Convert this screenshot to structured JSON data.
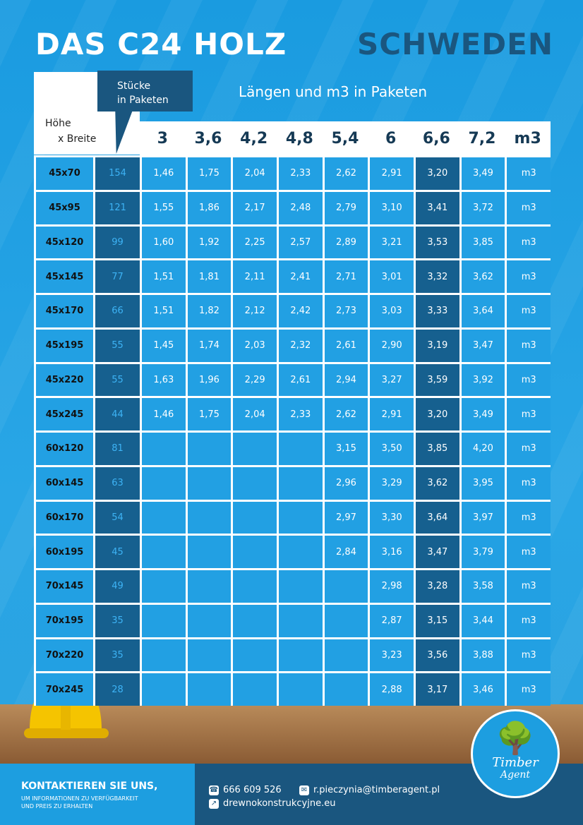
{
  "title_left": "DAS C24 HOLZ",
  "title_right": "SCHWEDEN",
  "header": {
    "hb_line1": "Höhe",
    "hb_line2": "x Breite",
    "pieces_line1": "Stücke",
    "pieces_line2": "in Paketen",
    "lengths_title": "Längen und m3 in Paketen"
  },
  "lengths": [
    "3",
    "3,6",
    "4,2",
    "4,8",
    "5,4",
    "6",
    "6,6",
    "7,2",
    "m3"
  ],
  "rows": [
    {
      "dim": "45x70",
      "pcs": "154",
      "v": [
        "1,46",
        "1,75",
        "2,04",
        "2,33",
        "2,62",
        "2,91",
        "3,20",
        "3,49"
      ],
      "unit": "m3"
    },
    {
      "dim": "45x95",
      "pcs": "121",
      "v": [
        "1,55",
        "1,86",
        "2,17",
        "2,48",
        "2,79",
        "3,10",
        "3,41",
        "3,72"
      ],
      "unit": "m3"
    },
    {
      "dim": "45x120",
      "pcs": "99",
      "v": [
        "1,60",
        "1,92",
        "2,25",
        "2,57",
        "2,89",
        "3,21",
        "3,53",
        "3,85"
      ],
      "unit": "m3"
    },
    {
      "dim": "45x145",
      "pcs": "77",
      "v": [
        "1,51",
        "1,81",
        "2,11",
        "2,41",
        "2,71",
        "3,01",
        "3,32",
        "3,62"
      ],
      "unit": "m3"
    },
    {
      "dim": "45x170",
      "pcs": "66",
      "v": [
        "1,51",
        "1,82",
        "2,12",
        "2,42",
        "2,73",
        "3,03",
        "3,33",
        "3,64"
      ],
      "unit": "m3"
    },
    {
      "dim": "45x195",
      "pcs": "55",
      "v": [
        "1,45",
        "1,74",
        "2,03",
        "2,32",
        "2,61",
        "2,90",
        "3,19",
        "3,47"
      ],
      "unit": "m3"
    },
    {
      "dim": "45x220",
      "pcs": "55",
      "v": [
        "1,63",
        "1,96",
        "2,29",
        "2,61",
        "2,94",
        "3,27",
        "3,59",
        "3,92"
      ],
      "unit": "m3"
    },
    {
      "dim": "45x245",
      "pcs": "44",
      "v": [
        "1,46",
        "1,75",
        "2,04",
        "2,33",
        "2,62",
        "2,91",
        "3,20",
        "3,49"
      ],
      "unit": "m3"
    },
    {
      "dim": "60x120",
      "pcs": "81",
      "v": [
        "",
        "",
        "",
        "",
        "3,15",
        "3,50",
        "3,85",
        "4,20"
      ],
      "unit": "m3"
    },
    {
      "dim": "60x145",
      "pcs": "63",
      "v": [
        "",
        "",
        "",
        "",
        "2,96",
        "3,29",
        "3,62",
        "3,95"
      ],
      "unit": "m3"
    },
    {
      "dim": "60x170",
      "pcs": "54",
      "v": [
        "",
        "",
        "",
        "",
        "2,97",
        "3,30",
        "3,64",
        "3,97"
      ],
      "unit": "m3"
    },
    {
      "dim": "60x195",
      "pcs": "45",
      "v": [
        "",
        "",
        "",
        "",
        "2,84",
        "3,16",
        "3,47",
        "3,79"
      ],
      "unit": "m3"
    },
    {
      "dim": "70x145",
      "pcs": "49",
      "v": [
        "",
        "",
        "",
        "",
        "",
        "2,98",
        "3,28",
        "3,58"
      ],
      "unit": "m3"
    },
    {
      "dim": "70x195",
      "pcs": "35",
      "v": [
        "",
        "",
        "",
        "",
        "",
        "2,87",
        "3,15",
        "3,44"
      ],
      "unit": "m3"
    },
    {
      "dim": "70x220",
      "pcs": "35",
      "v": [
        "",
        "",
        "",
        "",
        "",
        "3,23",
        "3,56",
        "3,88"
      ],
      "unit": "m3"
    },
    {
      "dim": "70x245",
      "pcs": "28",
      "v": [
        "",
        "",
        "",
        "",
        "",
        "2,88",
        "3,17",
        "3,46"
      ],
      "unit": "m3"
    }
  ],
  "footer": {
    "cta": "KONTAKTIEREN SIE UNS,",
    "cta_sub1": "UM INFORMATIONEN ZU VERFÜGBARKEIT",
    "cta_sub2": "UND PREIS ZU ERHALTEN",
    "phone": "666 609 526",
    "email": "r.pieczynia@timberagent.pl",
    "website": "drewnokonstrukcyjne.eu"
  },
  "logo": {
    "line1": "Timber",
    "line2": "Agent"
  },
  "icons": [
    "phone-icon",
    "mail-icon",
    "link-icon",
    "tree-icon"
  ]
}
